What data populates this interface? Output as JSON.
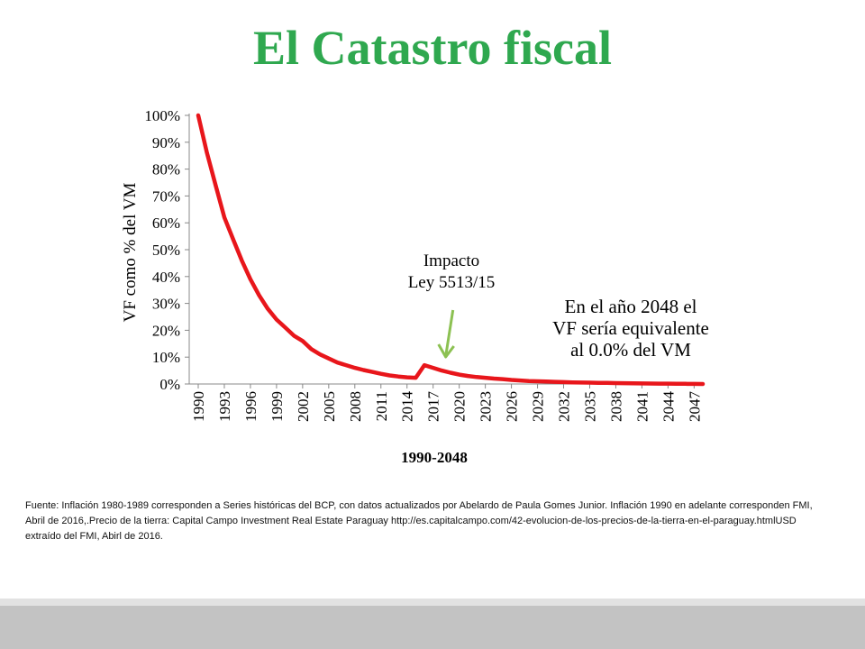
{
  "slide": {
    "title": "El Catastro fiscal",
    "source_note": "Fuente:  Inflación 1980-1989 corresponden a Series históricas del BCP, con datos actualizados por Abelardo de Paula Gomes Junior. Inflación 1990 en adelante corresponden FMI, Abril  de 2016,.Precio  de la tierra: Capital Campo Investment Real Estate Paraguay http://es.capitalcampo.com/42-evolucion-de-los-precios-de-la-tierra-en-el-paraguay.htmlUSD extraído del FMI, Abirl  de 2016."
  },
  "colors": {
    "title": "#2fa84f",
    "line": "#e8161b",
    "arrow": "#8cc152"
  },
  "chart_data": {
    "type": "line",
    "title": "",
    "xlabel": "1990-2048",
    "ylabel": "VF como % del VM",
    "ylim": [
      0,
      100
    ],
    "x_tick_labels": [
      "1990",
      "1993",
      "1996",
      "1999",
      "2002",
      "2005",
      "2008",
      "2011",
      "2014",
      "2017",
      "2020",
      "2023",
      "2026",
      "2029",
      "2032",
      "2035",
      "2038",
      "2041",
      "2044",
      "2047"
    ],
    "y_tick_labels": [
      "0%",
      "10%",
      "20%",
      "30%",
      "40%",
      "50%",
      "60%",
      "70%",
      "80%",
      "90%",
      "100%"
    ],
    "y_ticks": [
      0,
      10,
      20,
      30,
      40,
      50,
      60,
      70,
      80,
      90,
      100
    ],
    "grid": false,
    "legend": "none",
    "series": [
      {
        "x": [
          1990,
          1991,
          1992,
          1993,
          1994,
          1995,
          1996,
          1997,
          1998,
          1999,
          2000,
          2001,
          2002,
          2003,
          2004,
          2005,
          2006,
          2007,
          2008,
          2009,
          2010,
          2011,
          2012,
          2013,
          2014,
          2015,
          2016,
          2017,
          2018,
          2019,
          2020,
          2021,
          2022,
          2023,
          2024,
          2025,
          2026,
          2027,
          2028,
          2029,
          2030,
          2031,
          2032,
          2033,
          2034,
          2035,
          2036,
          2037,
          2038,
          2039,
          2040,
          2041,
          2042,
          2043,
          2044,
          2045,
          2046,
          2047,
          2048
        ],
        "values": [
          100,
          86,
          74,
          62,
          54,
          46,
          39,
          33,
          28,
          24,
          21,
          18,
          16,
          13,
          11,
          9.5,
          8,
          7,
          6,
          5.2,
          4.5,
          3.8,
          3.2,
          2.8,
          2.5,
          2.3,
          7,
          6,
          5,
          4.2,
          3.5,
          3,
          2.6,
          2.3,
          2,
          1.8,
          1.5,
          1.3,
          1.1,
          1,
          0.9,
          0.8,
          0.7,
          0.6,
          0.55,
          0.5,
          0.45,
          0.4,
          0.35,
          0.3,
          0.25,
          0.2,
          0.18,
          0.15,
          0.12,
          0.1,
          0.08,
          0.05,
          0.0
        ]
      }
    ],
    "annotations": [
      {
        "text": "Impacto\nLey 5513/15",
        "points_to": 2017
      },
      {
        "text": "En el año 2048  el\nVF sería equivalente\nal 0.0% del VM"
      }
    ]
  }
}
